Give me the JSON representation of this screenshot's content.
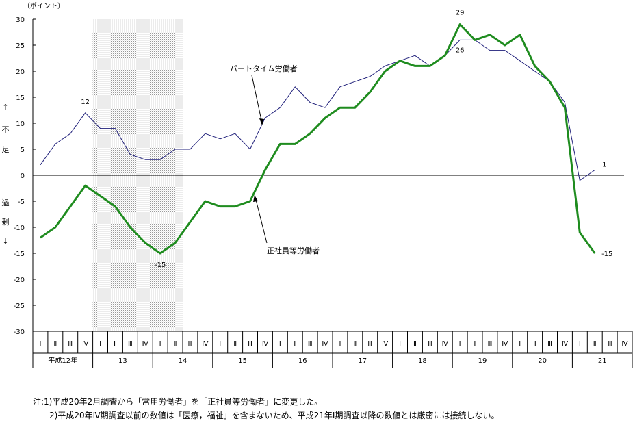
{
  "chart_data": {
    "type": "line",
    "y_unit": "（ポイント）",
    "ylim": [
      -30,
      30
    ],
    "y_ticks": [
      30,
      25,
      20,
      15,
      10,
      5,
      0,
      -5,
      -10,
      -15,
      -20,
      -25,
      -30
    ],
    "y_side_labels": [
      "↑",
      "不",
      "足",
      "過",
      "剰",
      "↓"
    ],
    "quarters": [
      "Ⅰ",
      "Ⅱ",
      "Ⅲ",
      "Ⅳ"
    ],
    "years": [
      "平成12年",
      "13",
      "14",
      "15",
      "16",
      "17",
      "18",
      "19",
      "20",
      "21"
    ],
    "shaded_period": [
      4,
      10
    ],
    "series": [
      {
        "name": "パートタイム労働者",
        "color": "#1f1f7a",
        "values": [
          2,
          6,
          8,
          12,
          9,
          9,
          4,
          3,
          3,
          5,
          5,
          8,
          7,
          8,
          5,
          11,
          13,
          17,
          14,
          13,
          17,
          18,
          19,
          21,
          22,
          23,
          21,
          23,
          26,
          26,
          24,
          24,
          22,
          20,
          18,
          14,
          -1,
          1
        ]
      },
      {
        "name": "正社員等労働者",
        "color": "#1f8c1f",
        "values": [
          -12,
          -10,
          -6,
          -2,
          -4,
          -6,
          -10,
          -13,
          -15,
          -13,
          -9,
          -5,
          -6,
          -6,
          -5,
          1,
          6,
          6,
          8,
          11,
          13,
          13,
          16,
          20,
          22,
          21,
          21,
          23,
          29,
          26,
          27,
          25,
          27,
          21,
          18,
          13,
          -11,
          -15
        ]
      }
    ],
    "data_labels": [
      {
        "text": "12",
        "series": 0,
        "index": 3
      },
      {
        "text": "-15",
        "series": 1,
        "index": 8
      },
      {
        "text": "29",
        "series": 1,
        "index": 28
      },
      {
        "text": "26",
        "series": 0,
        "index": 28
      },
      {
        "text": "1",
        "series": 0,
        "index": 37
      },
      {
        "text": "-15",
        "series": 1,
        "index": 37
      }
    ]
  },
  "notes": [
    "注:1)平成20年2月調査から「常用労働者」を「正社員等労働者」に変更した。",
    "2)平成20年Ⅳ期調査以前の数値は「医療，福祉」を含まないため、平成21年Ⅰ期調査以降の数値とは厳密には接続しない。"
  ]
}
